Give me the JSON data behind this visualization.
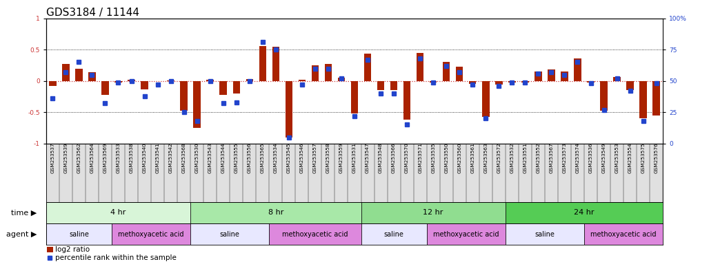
{
  "title": "GDS3184 / 11144",
  "samples": [
    "GSM253537",
    "GSM253539",
    "GSM253562",
    "GSM253564",
    "GSM253569",
    "GSM253533",
    "GSM253538",
    "GSM253540",
    "GSM253541",
    "GSM253542",
    "GSM253568",
    "GSM253530",
    "GSM253543",
    "GSM253544",
    "GSM253555",
    "GSM253556",
    "GSM253565",
    "GSM253534",
    "GSM253545",
    "GSM253546",
    "GSM253557",
    "GSM253558",
    "GSM253559",
    "GSM253531",
    "GSM253547",
    "GSM253548",
    "GSM253566",
    "GSM253570",
    "GSM253571",
    "GSM253535",
    "GSM253550",
    "GSM253560",
    "GSM253561",
    "GSM253563",
    "GSM253572",
    "GSM253532",
    "GSM253551",
    "GSM253552",
    "GSM253567",
    "GSM253573",
    "GSM253574",
    "GSM253536",
    "GSM253549",
    "GSM253553",
    "GSM253554",
    "GSM253575",
    "GSM253576"
  ],
  "log2_ratio": [
    -0.08,
    0.27,
    0.2,
    0.14,
    -0.22,
    -0.02,
    0.02,
    -0.14,
    -0.0,
    0.01,
    -0.48,
    -0.75,
    0.02,
    -0.22,
    -0.2,
    0.03,
    0.56,
    0.55,
    -0.9,
    0.02,
    0.25,
    0.27,
    0.05,
    -0.52,
    0.44,
    -0.15,
    -0.15,
    -0.62,
    0.45,
    -0.02,
    0.3,
    0.23,
    -0.05,
    -0.58,
    -0.06,
    -0.02,
    -0.03,
    0.15,
    0.18,
    0.15,
    0.36,
    -0.03,
    -0.48,
    0.06,
    -0.15,
    -0.6,
    -0.55
  ],
  "percentile": [
    36,
    57,
    65,
    55,
    32,
    49,
    50,
    38,
    47,
    50,
    25,
    18,
    50,
    32,
    33,
    50,
    81,
    75,
    5,
    47,
    60,
    60,
    52,
    22,
    67,
    40,
    40,
    15,
    68,
    49,
    62,
    57,
    47,
    20,
    46,
    49,
    49,
    56,
    57,
    55,
    65,
    48,
    27,
    52,
    42,
    18,
    48
  ],
  "time_groups": [
    {
      "label": "4 hr",
      "start": 0,
      "end": 11,
      "color": "#d8f5d8"
    },
    {
      "label": "8 hr",
      "start": 11,
      "end": 24,
      "color": "#a8e8a8"
    },
    {
      "label": "12 hr",
      "start": 24,
      "end": 35,
      "color": "#90dd90"
    },
    {
      "label": "24 hr",
      "start": 35,
      "end": 47,
      "color": "#55cc55"
    }
  ],
  "agent_groups": [
    {
      "label": "saline",
      "start": 0,
      "end": 5,
      "color": "#e8e8ff"
    },
    {
      "label": "methoxyacetic acid",
      "start": 5,
      "end": 11,
      "color": "#dd88dd"
    },
    {
      "label": "saline",
      "start": 11,
      "end": 17,
      "color": "#e8e8ff"
    },
    {
      "label": "methoxyacetic acid",
      "start": 17,
      "end": 24,
      "color": "#dd88dd"
    },
    {
      "label": "saline",
      "start": 24,
      "end": 29,
      "color": "#e8e8ff"
    },
    {
      "label": "methoxyacetic acid",
      "start": 29,
      "end": 35,
      "color": "#dd88dd"
    },
    {
      "label": "saline",
      "start": 35,
      "end": 41,
      "color": "#e8e8ff"
    },
    {
      "label": "methoxyacetic acid",
      "start": 41,
      "end": 47,
      "color": "#dd88dd"
    }
  ],
  "bar_color": "#aa2200",
  "dot_color": "#2244cc",
  "zero_line_color": "#cc3333",
  "ylim": [
    -1,
    1
  ],
  "yticks_left": [
    -1,
    -0.5,
    0,
    0.5,
    1
  ],
  "yticks_right": [
    0,
    25,
    50,
    75,
    100
  ],
  "hline_vals": [
    -0.5,
    0,
    0.5
  ],
  "bg_color": "#ffffff",
  "xticklabel_bg": "#e0e0e0",
  "title_fontsize": 11,
  "tick_fontsize": 6.5,
  "label_fontsize": 8
}
